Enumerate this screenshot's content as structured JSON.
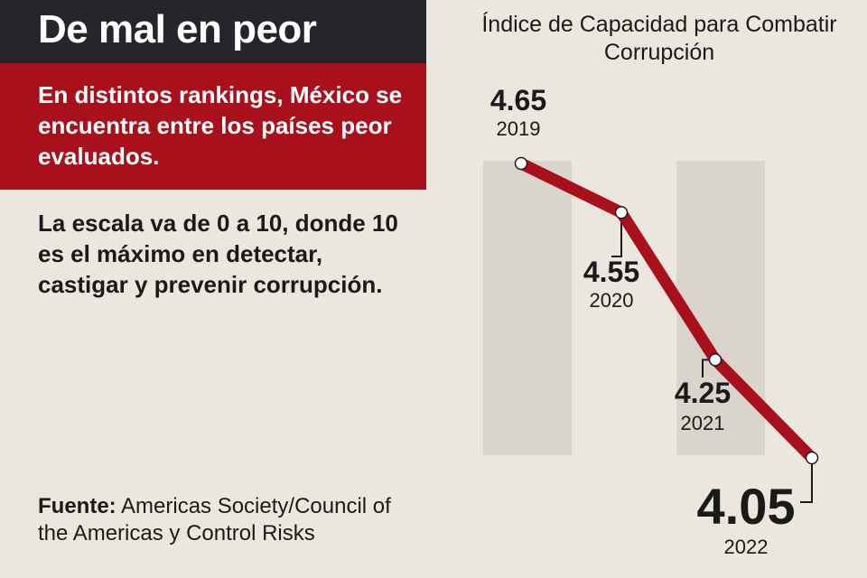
{
  "header": {
    "title": "De mal en peor"
  },
  "subtitle": "En distintos rankings, México se encuentra entre los países peor evaluados.",
  "description": "La escala va de 0 a 10, donde 10 es el máximo en detectar, castigar y prevenir corrupción.",
  "source": {
    "label": "Fuente:",
    "text": "Americas Society/Council of the Americas y Control Risks"
  },
  "chart_data": {
    "type": "line",
    "title": "Índice de Capacidad para Combatir Corrupción",
    "categories": [
      "2019",
      "2020",
      "2021",
      "2022"
    ],
    "values": [
      4.65,
      4.55,
      4.25,
      4.05
    ],
    "value_labels": [
      "4.65",
      "4.55",
      "4.25",
      "4.05"
    ],
    "line_color": "#a8101c",
    "highlight_color": "#a8101c",
    "band_color": "#d9d5cd",
    "grid": false
  }
}
